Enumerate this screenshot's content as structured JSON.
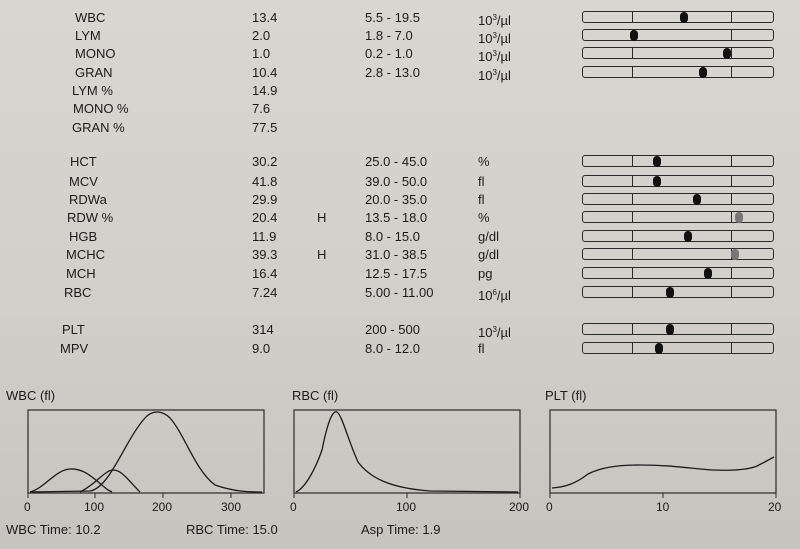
{
  "header_partial": "...........(...........)....................................................",
  "results": [
    {
      "name": "WBC",
      "value": "13.4",
      "flag": "",
      "range": "5.5 - 19.5",
      "unit_base": "10",
      "unit_exp": "3",
      "unit_rest": "/µl",
      "marker_pos": 0.53
    },
    {
      "name": "LYM",
      "value": "2.0",
      "flag": "",
      "range": "1.8 - 7.0",
      "unit_base": "10",
      "unit_exp": "3",
      "unit_rest": "/µl",
      "marker_pos": 0.27
    },
    {
      "name": "MONO",
      "value": "1.0",
      "flag": "",
      "range": "0.2 - 1.0",
      "unit_base": "10",
      "unit_exp": "3",
      "unit_rest": "/µl",
      "marker_pos": 0.76
    },
    {
      "name": "GRAN",
      "value": "10.4",
      "flag": "",
      "range": "2.8 - 13.0",
      "unit_base": "10",
      "unit_exp": "3",
      "unit_rest": "/µl",
      "marker_pos": 0.63
    },
    {
      "name": "LYM %",
      "value": "14.9"
    },
    {
      "name": "MONO %",
      "value": "7.6"
    },
    {
      "name": "GRAN %",
      "value": "77.5"
    },
    {
      "name": "HCT",
      "value": "30.2",
      "flag": "",
      "range": "25.0 - 45.0",
      "unit": "%",
      "marker_pos": 0.39
    },
    {
      "name": "MCV",
      "value": "41.8",
      "flag": "",
      "range": "39.0 - 50.0",
      "unit": "fl",
      "marker_pos": 0.39
    },
    {
      "name": "RDWa",
      "value": "29.9",
      "flag": "",
      "range": "20.0 - 35.0",
      "unit": "fl",
      "marker_pos": 0.6
    },
    {
      "name": "RDW %",
      "value": "20.4",
      "flag": "H",
      "range": "13.5 - 18.0",
      "unit": "%",
      "marker_pos": 0.82,
      "high": true
    },
    {
      "name": "HGB",
      "value": "11.9",
      "flag": "",
      "range": "8.0 - 15.0",
      "unit": "g/dl",
      "marker_pos": 0.55
    },
    {
      "name": "MCHC",
      "value": "39.3",
      "flag": "H",
      "range": "31.0 - 38.5",
      "unit": "g/dl",
      "marker_pos": 0.8,
      "high": true
    },
    {
      "name": "MCH",
      "value": "16.4",
      "flag": "",
      "range": "12.5 - 17.5",
      "unit": "pg",
      "marker_pos": 0.66
    },
    {
      "name": "RBC",
      "value": "7.24",
      "flag": "",
      "range": "5.00 - 11.00",
      "unit_base": "10",
      "unit_exp": "6",
      "unit_rest": "/µl",
      "marker_pos": 0.46
    },
    {
      "name": "PLT",
      "value": "314",
      "flag": "",
      "range": "200 - 500",
      "unit_base": "10",
      "unit_exp": "3",
      "unit_rest": "/µl",
      "marker_pos": 0.46
    },
    {
      "name": "MPV",
      "value": "9.0",
      "flag": "",
      "range": "8.0 - 12.0",
      "unit": "fl",
      "marker_pos": 0.4
    }
  ],
  "histograms": {
    "wbc": {
      "title": "WBC (fl)",
      "ticks": [
        "0",
        "100",
        "200",
        "300"
      ]
    },
    "rbc": {
      "title": "RBC (fl)",
      "ticks": [
        "0",
        "100",
        "200"
      ]
    },
    "plt": {
      "title": "PLT (fl)",
      "ticks": [
        "0",
        "10",
        "20"
      ]
    }
  },
  "footer": {
    "wbc_time": "WBC Time: 10.2",
    "rbc_time": "RBC Time: 15.0",
    "asp_time": "Asp Time: 1.9"
  }
}
